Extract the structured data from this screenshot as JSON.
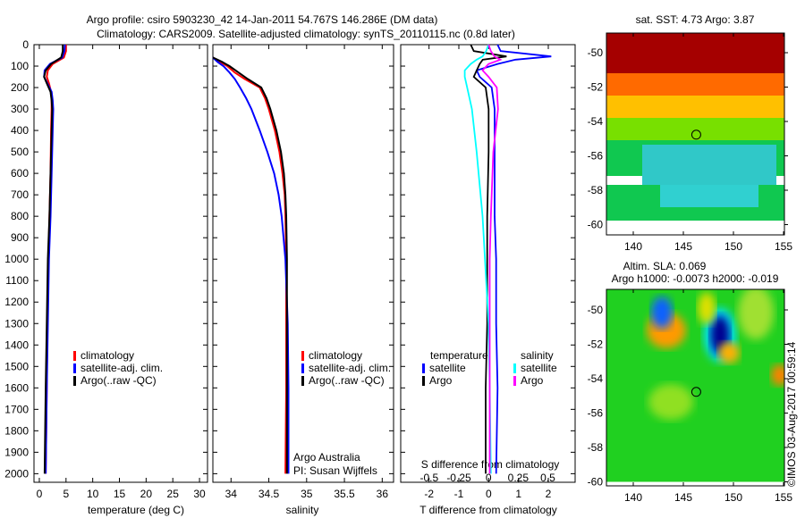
{
  "title_line1": "Argo profile: csiro 5903230_42 14-Jan-2011 54.767S 146.286E (DM data)",
  "title_line2": "Climatology: CARS2009. Satellite-adjusted climatology: synTS_20110115.nc (0.8d later)",
  "colors": {
    "climatology": "#ff0000",
    "satellite": "#0000ff",
    "argo": "#000000",
    "sal_satellite": "#00ffff",
    "sal_argo": "#ff00ff"
  },
  "chart_data": [
    {
      "type": "line",
      "name": "temperature",
      "xlabel": "temperature (deg C)",
      "ylabel": "",
      "xlim": [
        -1,
        31.5
      ],
      "ylim": [
        2040,
        0
      ],
      "xticks": [
        0,
        5,
        10,
        15,
        20,
        25,
        30
      ],
      "yticks": [
        0,
        100,
        200,
        300,
        400,
        500,
        600,
        700,
        800,
        900,
        1000,
        1100,
        1200,
        1300,
        1400,
        1500,
        1600,
        1700,
        1800,
        1900,
        2000
      ],
      "depth": [
        0,
        30,
        60,
        90,
        120,
        150,
        180,
        220,
        260,
        300,
        400,
        600,
        800,
        1000,
        1300,
        1600,
        2000
      ],
      "series": [
        {
          "name": "climatology",
          "values": [
            5.0,
            5.0,
            4.6,
            2.5,
            1.6,
            1.4,
            1.8,
            2.2,
            2.3,
            2.3,
            2.2,
            2.1,
            1.9,
            1.7,
            1.5,
            1.4,
            1.2
          ]
        },
        {
          "name": "satellite-adj. clim.",
          "values": [
            4.8,
            4.7,
            4.3,
            2.0,
            1.0,
            0.9,
            1.5,
            2.3,
            2.5,
            2.6,
            2.5,
            2.3,
            2.1,
            1.8,
            1.6,
            1.4,
            1.2
          ]
        },
        {
          "name": "Argo(..raw -QC)",
          "values": [
            4.4,
            4.4,
            4.1,
            2.2,
            1.2,
            0.9,
            1.4,
            2.1,
            2.3,
            2.4,
            2.3,
            2.1,
            1.9,
            1.6,
            1.4,
            1.2,
            1.0
          ]
        }
      ],
      "legend": [
        "climatology",
        "satellite-adj. clim.",
        "Argo(..raw -QC)"
      ],
      "legend_position": "center-bottom"
    },
    {
      "type": "line",
      "name": "salinity",
      "xlabel": "salinity",
      "xlim": [
        33.76,
        36.15
      ],
      "ylim": [
        2040,
        0
      ],
      "xticks": [
        34,
        34.5,
        35,
        35.5,
        36
      ],
      "depth": [
        60,
        80,
        100,
        130,
        160,
        200,
        250,
        300,
        400,
        500,
        600,
        700,
        800,
        1000,
        1300,
        1600,
        2000
      ],
      "series": [
        {
          "name": "climatology",
          "values": [
            33.76,
            33.85,
            33.95,
            34.05,
            34.18,
            34.38,
            34.45,
            34.5,
            34.58,
            34.64,
            34.68,
            34.71,
            34.72,
            34.73,
            34.73,
            34.73,
            34.72
          ]
        },
        {
          "name": "satellite-adj. clim.",
          "values": [
            33.76,
            33.82,
            33.9,
            33.98,
            34.05,
            34.12,
            34.2,
            34.27,
            34.38,
            34.48,
            34.57,
            34.63,
            34.67,
            34.72,
            34.75,
            34.76,
            34.76
          ]
        },
        {
          "name": "Argo(..raw -QC)",
          "values": [
            33.76,
            33.88,
            33.98,
            34.1,
            34.22,
            34.4,
            34.47,
            34.52,
            34.6,
            34.66,
            34.7,
            34.72,
            34.73,
            34.74,
            34.74,
            34.74,
            34.74
          ]
        }
      ],
      "legend": [
        "climatology",
        "satellite-adj. clim.",
        "Argo(..raw -QC)"
      ],
      "annotation1": "Argo Australia",
      "annotation2": "PI: Susan Wijffels"
    },
    {
      "type": "line",
      "name": "differences",
      "xlabel": "T difference from climatology",
      "x2label": "S difference from climatology",
      "xlim": [
        -2.95,
        2.9
      ],
      "x2lim": [
        -0.74,
        0.73
      ],
      "xticks": [
        "-2",
        "-1",
        "0",
        "1",
        "2"
      ],
      "x2ticks": [
        "-0.5",
        "-0.25",
        "0",
        "0.25",
        "0.5"
      ],
      "depth": [
        0,
        30,
        55,
        70,
        90,
        120,
        150,
        200,
        300,
        500,
        800,
        1000,
        1300,
        1600,
        2000
      ],
      "series": [
        {
          "name": "temperature satellite",
          "axis": "T",
          "values": [
            0.3,
            0.4,
            2.1,
            0.9,
            0.3,
            -0.4,
            -0.3,
            0.1,
            0.2,
            0.2,
            0.2,
            0.25,
            0.25,
            0.3,
            0.25
          ]
        },
        {
          "name": "temperature Argo",
          "axis": "T",
          "values": [
            -0.6,
            -0.5,
            0.6,
            -0.2,
            -0.3,
            -0.4,
            -0.5,
            -0.1,
            0.0,
            0.0,
            -0.05,
            -0.05,
            -0.05,
            -0.1,
            -0.1
          ]
        },
        {
          "name": "salinity satellite",
          "axis": "S",
          "values": [
            0.0,
            -0.02,
            -0.05,
            -0.1,
            -0.15,
            -0.2,
            -0.2,
            -0.18,
            -0.14,
            -0.1,
            -0.05,
            -0.03,
            0.0,
            0.01,
            0.02
          ]
        },
        {
          "name": "salinity Argo",
          "axis": "S",
          "values": [
            0.0,
            0.02,
            0.05,
            0.1,
            0.0,
            -0.05,
            0.0,
            0.07,
            0.08,
            0.04,
            0.02,
            0.01,
            0.01,
            0.01,
            0.01
          ]
        }
      ],
      "legend_t_title": "temperature",
      "legend_s_title": "salinity",
      "legend_t": [
        "satellite",
        "Argo"
      ],
      "legend_s": [
        "satellite",
        "Argo"
      ]
    },
    {
      "type": "heatmap",
      "name": "sst-map",
      "title": "sat. SST: 4.73 Argo: 3.87",
      "xticks": [
        140,
        145,
        150,
        155
      ],
      "yticks": [
        -50,
        -52,
        -54,
        -56,
        -58,
        -60
      ],
      "marker": {
        "lon": 146.286,
        "lat": -54.767
      }
    },
    {
      "type": "heatmap",
      "name": "sla-map",
      "title1": "Altim. SLA: 0.069",
      "title2": "Argo h1000: -0.0073 h2000: -0.019",
      "xticks": [
        140,
        145,
        150,
        155
      ],
      "yticks": [
        -50,
        -52,
        -54,
        -56,
        -58,
        -60
      ],
      "marker": {
        "lon": 146.286,
        "lat": -54.767
      }
    }
  ],
  "timestamp": "©IMOS 03-Aug-2017 00:59:14"
}
